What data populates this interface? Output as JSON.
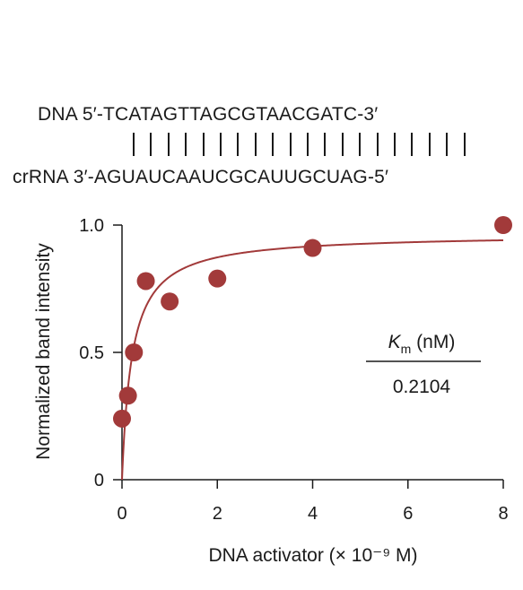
{
  "sequence": {
    "dna": "DNA 5′-TCATAGTTAGCGTAACGATC-3′",
    "crrna": "crRNA 3′-AGUAUCAAUCGCAUUGCUAG-5′",
    "pairs": 20
  },
  "chart_data": {
    "type": "scatter",
    "title": "",
    "xlabel": "DNA activator (× 10⁻⁹ M)",
    "ylabel": "Normalized band intensity",
    "xlim": [
      0,
      8
    ],
    "ylim": [
      0,
      1.0
    ],
    "xticks": [
      0,
      2,
      4,
      6,
      8
    ],
    "yticks": [
      0,
      0.5,
      1.0
    ],
    "ytick_labels": [
      "0",
      "0.5",
      "1.0"
    ],
    "points": [
      {
        "x": 0.0,
        "y": 0.24
      },
      {
        "x": 0.125,
        "y": 0.33
      },
      {
        "x": 0.25,
        "y": 0.5
      },
      {
        "x": 0.5,
        "y": 0.78
      },
      {
        "x": 1.0,
        "y": 0.7
      },
      {
        "x": 2.0,
        "y": 0.79
      },
      {
        "x": 4.0,
        "y": 0.91
      },
      {
        "x": 8.0,
        "y": 1.0
      }
    ],
    "fit": {
      "type": "michaelis-menten",
      "vmax": 0.965,
      "km": 0.2104
    },
    "annotation": {
      "km_label_k": "K",
      "km_label_sub": "m",
      "km_label_unit": " (nM)",
      "km_value": "0.2104"
    },
    "colors": {
      "points": "#a23a3a",
      "fit": "#a23a3a",
      "axis": "#1a1a1a"
    }
  }
}
